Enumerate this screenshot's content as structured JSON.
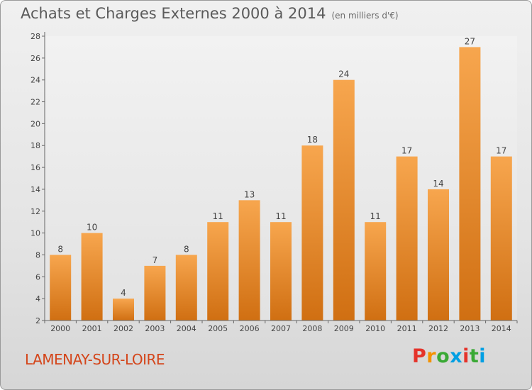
{
  "header": {
    "title": "Achats et Charges Externes 2000 à 2014",
    "unit": "(en milliers d'€)"
  },
  "footer": {
    "commune": "LAMENAY-SUR-LOIRE",
    "logo_text": "Proxiti"
  },
  "colors": {
    "bar_top": "#f7a64e",
    "bar_bottom": "#d06f12",
    "commune_text": "#d4451a",
    "logo_letters": [
      "#e5332a",
      "#f39200",
      "#3aa935",
      "#009fe3",
      "#e5332a",
      "#3aa935",
      "#009fe3"
    ]
  },
  "chart_data": {
    "type": "bar",
    "title": "Achats et Charges Externes 2000 à 2014",
    "categories": [
      "2000",
      "2001",
      "2002",
      "2003",
      "2004",
      "2005",
      "2006",
      "2007",
      "2008",
      "2009",
      "2010",
      "2011",
      "2012",
      "2013",
      "2014"
    ],
    "values": [
      8,
      10,
      4,
      7,
      8,
      11,
      13,
      11,
      18,
      24,
      11,
      17,
      14,
      27,
      17
    ],
    "xlabel": "",
    "ylabel": "",
    "ylim": [
      2,
      28
    ],
    "yticks": [
      2,
      4,
      6,
      8,
      10,
      12,
      14,
      16,
      18,
      20,
      22,
      24,
      26,
      28
    ],
    "grid": false,
    "legend": "none"
  }
}
